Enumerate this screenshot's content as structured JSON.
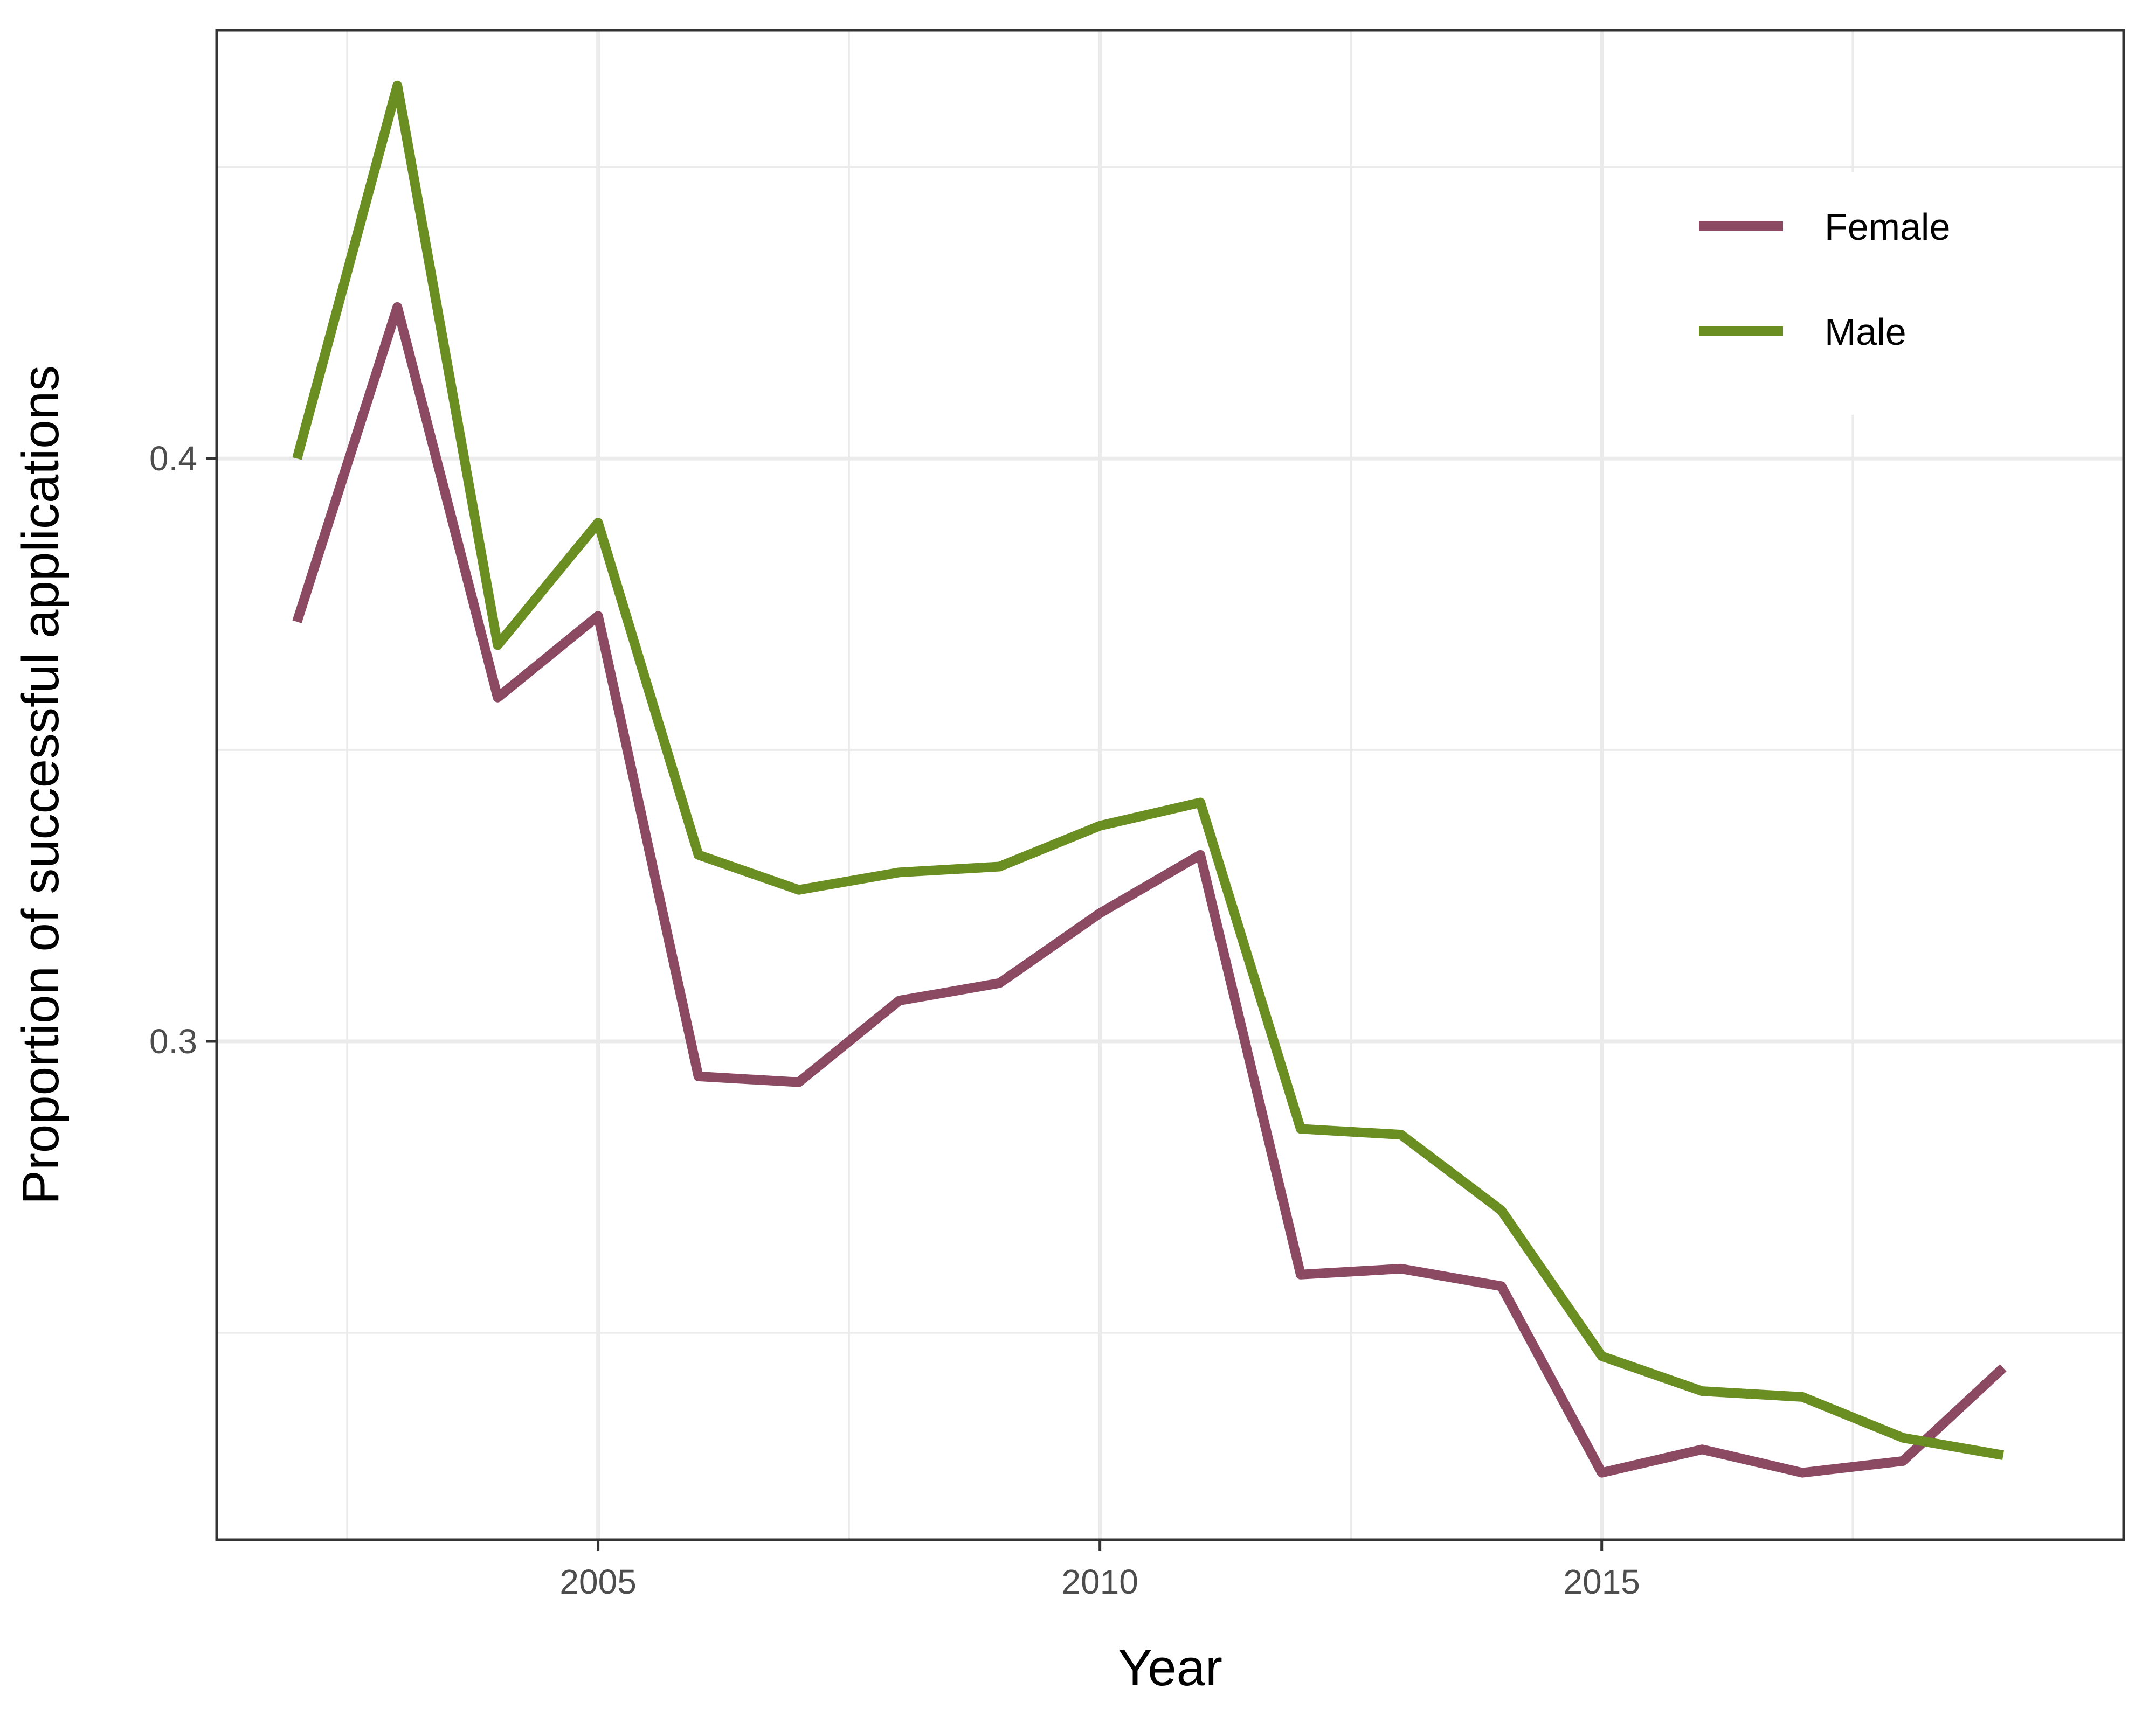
{
  "chart_data": {
    "type": "line",
    "title": "",
    "xlabel": "Year",
    "ylabel": "Proportion of successful applications",
    "x": [
      2002,
      2003,
      2004,
      2005,
      2006,
      2007,
      2008,
      2009,
      2010,
      2011,
      2012,
      2013,
      2014,
      2015,
      2016,
      2017,
      2018,
      2019
    ],
    "series": [
      {
        "name": "Female",
        "color": "#8b4a62",
        "values": [
          0.372,
          0.426,
          0.359,
          0.373,
          0.294,
          0.293,
          0.307,
          0.31,
          0.322,
          0.332,
          0.26,
          0.261,
          0.258,
          0.226,
          0.23,
          0.226,
          0.228,
          0.244
        ]
      },
      {
        "name": "Male",
        "color": "#6b8e23",
        "values": [
          0.4,
          0.464,
          0.368,
          0.389,
          0.332,
          0.326,
          0.329,
          0.33,
          0.337,
          0.341,
          0.285,
          0.284,
          0.271,
          0.246,
          0.24,
          0.239,
          0.232,
          0.229
        ]
      }
    ],
    "xlim": [
      2001.2,
      2020.2
    ],
    "ylim": [
      0.2145,
      0.4735
    ],
    "x_major_ticks": [
      2005,
      2010,
      2015
    ],
    "x_minor_ticks": [
      2002.5,
      2007.5,
      2012.5,
      2017.5
    ],
    "x_tick_labels": [
      "2005",
      "2010",
      "2015"
    ],
    "y_major_ticks": [
      0.3,
      0.4
    ],
    "y_minor_ticks": [
      0.25,
      0.35,
      0.45
    ],
    "y_tick_labels": [
      "0.3",
      "0.4"
    ],
    "grid": true,
    "legend": {
      "position": "top-right",
      "entries": [
        "Female",
        "Male"
      ]
    }
  }
}
